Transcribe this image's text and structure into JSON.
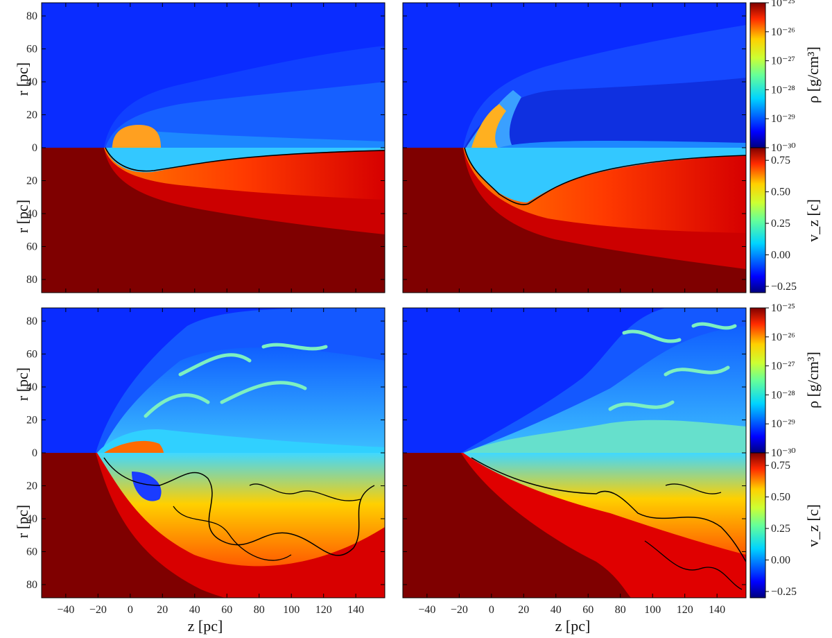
{
  "figure": {
    "panel_count": 4,
    "colormaps": {
      "density": [
        "#00007f",
        "#0000ff",
        "#0080ff",
        "#00e5ff",
        "#66ff99",
        "#ccff33",
        "#ffd000",
        "#ff6600",
        "#e00000",
        "#7f0000"
      ],
      "velocity": [
        "#00007f",
        "#0000ff",
        "#0080ff",
        "#00e5ff",
        "#66ff99",
        "#ccff33",
        "#ffd000",
        "#ff6600",
        "#e00000",
        "#7f0000"
      ]
    }
  },
  "axes": {
    "x_label": "z [pc]",
    "y_label": "r [pc]",
    "x_ticks": [
      "−40",
      "−20",
      "0",
      "20",
      "40",
      "60",
      "80",
      "100",
      "120",
      "140"
    ],
    "y_ticks_top": [
      "80",
      "60",
      "40",
      "20",
      "0"
    ],
    "y_ticks_bottom": [
      "20",
      "40",
      "60",
      "80"
    ]
  },
  "colorbars": {
    "density": {
      "label": "ρ [g/cm³]",
      "ticks": [
        "10⁻²⁵",
        "10⁻²⁶",
        "10⁻²⁷",
        "10⁻²⁸",
        "10⁻²⁹",
        "10⁻³⁰"
      ],
      "log_range": [
        -30,
        -25
      ]
    },
    "velocity": {
      "label": "v_z [c]",
      "ticks": [
        "0.75",
        "0.50",
        "0.25",
        "0.00",
        "−0.25"
      ],
      "range": [
        -0.3,
        0.85
      ]
    }
  },
  "chart_data": [
    {
      "type": "heatmap",
      "panel": "top-left",
      "quantities": [
        "density (upper half)",
        "v_z (lower half)"
      ],
      "xlim": [
        -55,
        158
      ],
      "ylim": [
        -88,
        88
      ],
      "xlabel": "",
      "ylabel": "r [pc]"
    },
    {
      "type": "heatmap",
      "panel": "top-right",
      "quantities": [
        "density (upper half)",
        "v_z (lower half)"
      ],
      "xlim": [
        -55,
        158
      ],
      "ylim": [
        -88,
        88
      ],
      "xlabel": "",
      "ylabel": ""
    },
    {
      "type": "heatmap",
      "panel": "bottom-left",
      "quantities": [
        "density (upper half)",
        "v_z (lower half)"
      ],
      "xlim": [
        -55,
        158
      ],
      "ylim": [
        -88,
        88
      ],
      "xlabel": "z [pc]",
      "ylabel": "r [pc]"
    },
    {
      "type": "heatmap",
      "panel": "bottom-right",
      "quantities": [
        "density (upper half)",
        "v_z (lower half)"
      ],
      "xlim": [
        -55,
        158
      ],
      "ylim": [
        -88,
        88
      ],
      "xlabel": "z [pc]",
      "ylabel": ""
    }
  ]
}
